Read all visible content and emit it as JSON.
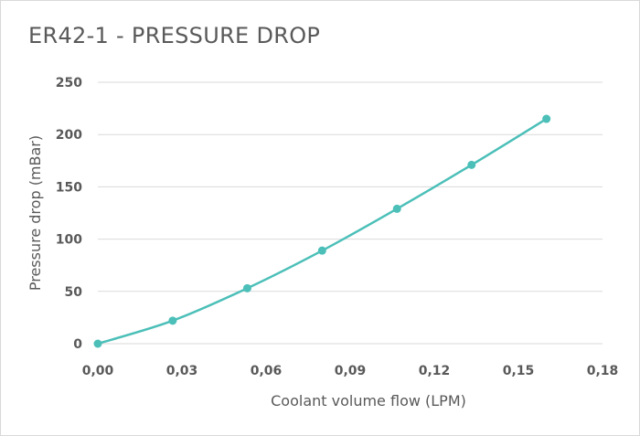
{
  "chart_data": {
    "type": "line",
    "title": "ER42-1 - PRESSURE DROP",
    "xlabel": "Coolant volume flow (LPM)",
    "ylabel": "Pressure drop (mBar)",
    "xlim": [
      0,
      0.18
    ],
    "ylim": [
      0,
      250
    ],
    "x_ticks": [
      "0,00",
      "0,03",
      "0,06",
      "0,09",
      "0,12",
      "0,15",
      "0,18"
    ],
    "y_ticks": [
      "0",
      "50",
      "100",
      "150",
      "200",
      "250"
    ],
    "x_tick_values": [
      0,
      0.03,
      0.06,
      0.09,
      0.12,
      0.15,
      0.18
    ],
    "y_tick_values": [
      0,
      50,
      100,
      150,
      200,
      250
    ],
    "grid": "horizontal",
    "legend": "none",
    "series": [
      {
        "color": "#4bbfb8",
        "x": [
          0.0,
          0.0267,
          0.0533,
          0.08,
          0.1067,
          0.1333,
          0.16
        ],
        "y": [
          0,
          22,
          53,
          89,
          129,
          171,
          215
        ]
      }
    ]
  }
}
